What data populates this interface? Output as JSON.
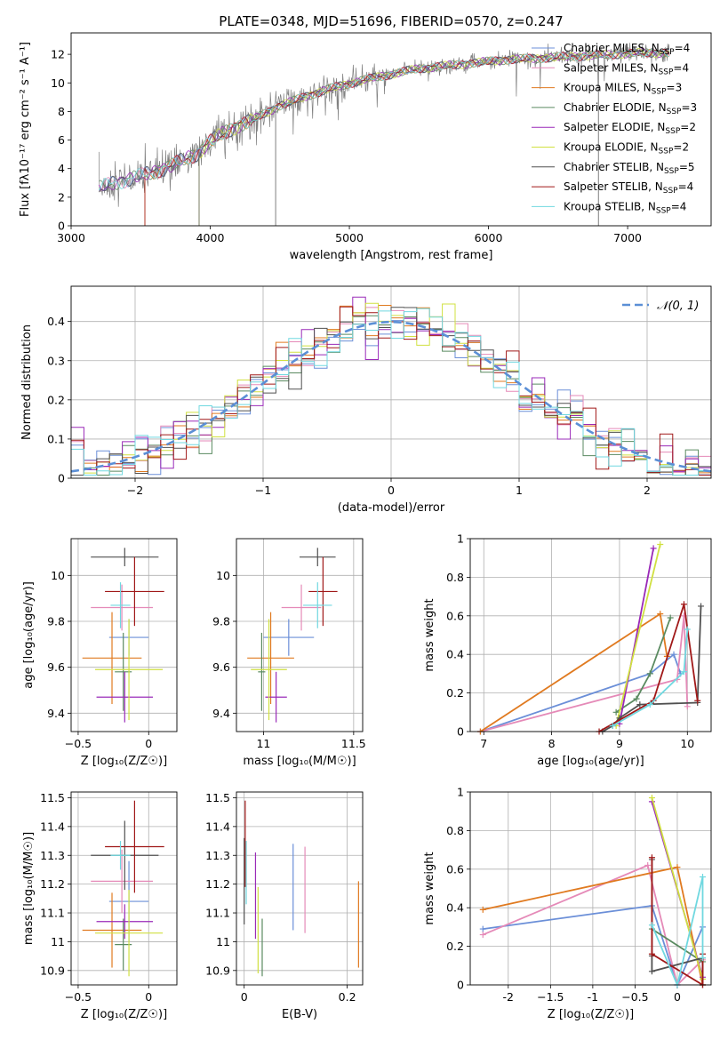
{
  "colors": {
    "chabrier_miles": "#6b8fd8",
    "salpeter_miles": "#e58ab8",
    "kroupa_miles": "#e07a20",
    "chabrier_elodie": "#5a8a60",
    "salpeter_elodie": "#9a2ab8",
    "kroupa_elodie": "#d0e040",
    "chabrier_stelib": "#505050",
    "salpeter_stelib": "#a01818",
    "kroupa_stelib": "#70d8e0",
    "gaussian": "#5b8fd6",
    "spectrum_data": "#808080"
  },
  "chart_data": [
    {
      "id": "spectrum",
      "type": "line",
      "title": "PLATE=0348, MJD=51696, FIBERID=0570, z=0.247",
      "xlabel": "wavelength [Angstrom, rest frame]",
      "ylabel": "Flux [fλ10⁻¹⁷ erg cm⁻² s⁻¹ A⁻¹]",
      "xlim": [
        3000,
        7600
      ],
      "ylim": [
        0,
        13.5
      ],
      "xticks": [
        3000,
        4000,
        5000,
        6000,
        7000
      ],
      "yticks": [
        0,
        2,
        4,
        6,
        8,
        10,
        12
      ],
      "legend_position": "right",
      "legend": [
        {
          "label": "Chabrier MILES, N_SSP=4",
          "color_key": "chabrier_miles"
        },
        {
          "label": "Salpeter MILES, N_SSP=4",
          "color_key": "salpeter_miles"
        },
        {
          "label": "Kroupa MILES, N_SSP=3",
          "color_key": "kroupa_miles"
        },
        {
          "label": "Chabrier ELODIE, N_SSP=3",
          "color_key": "chabrier_elodie"
        },
        {
          "label": "Salpeter ELODIE, N_SSP=2",
          "color_key": "salpeter_elodie"
        },
        {
          "label": "Kroupa ELODIE, N_SSP=2",
          "color_key": "kroupa_elodie"
        },
        {
          "label": "Chabrier STELIB, N_SSP=5",
          "color_key": "chabrier_stelib"
        },
        {
          "label": "Salpeter STELIB, N_SSP=4",
          "color_key": "salpeter_stelib"
        },
        {
          "label": "Kroupa STELIB, N_SSP=4",
          "color_key": "kroupa_stelib"
        }
      ],
      "continuum": {
        "x": [
          3200,
          3300,
          3400,
          3500,
          3600,
          3700,
          3800,
          3900,
          4000,
          4100,
          4200,
          4300,
          4400,
          4500,
          4700,
          4900,
          5100,
          5300,
          5500,
          5700,
          5900,
          6100,
          6300,
          6500,
          6700,
          6900,
          7100,
          7300
        ],
        "y": [
          2.6,
          3.0,
          3.2,
          3.5,
          3.8,
          4.1,
          4.6,
          5.0,
          5.9,
          6.5,
          7.0,
          7.4,
          7.9,
          8.4,
          9.1,
          9.7,
          10.2,
          10.6,
          11.0,
          11.2,
          11.4,
          11.6,
          11.7,
          11.8,
          11.9,
          12.0,
          12.1,
          12.1
        ]
      }
    },
    {
      "id": "residuals",
      "type": "bar",
      "xlabel": "(data-model)/error",
      "ylabel": "Normed distribution",
      "xlim": [
        -2.5,
        2.5
      ],
      "ylim": [
        0,
        0.49
      ],
      "xticks": [
        -2,
        -1,
        0,
        1,
        2
      ],
      "yticks": [
        0.0,
        0.1,
        0.2,
        0.3,
        0.4
      ],
      "grid": true,
      "legend_position": "top-right",
      "gaussian_label": "𝒩(0, 1)",
      "bin_width": 0.1,
      "bins_start": -2.5
    },
    {
      "id": "z_age",
      "type": "scatter",
      "xlabel": "Z [log₁₀(Z/Z☉)]",
      "ylabel": "age  [log₁₀(age/yr)]",
      "xlim": [
        -0.55,
        0.2
      ],
      "ylim": [
        9.32,
        10.16
      ],
      "xticks": [
        -0.5,
        0.0
      ],
      "yticks": [
        9.4,
        9.6,
        9.8,
        10.0
      ],
      "grid": true,
      "points": [
        {
          "series": "chabrier_miles",
          "x": -0.14,
          "xerr": 0.14,
          "y": 9.73,
          "yerr": 0.08
        },
        {
          "series": "salpeter_miles",
          "x": -0.19,
          "xerr": 0.22,
          "y": 9.86,
          "yerr": 0.1
        },
        {
          "series": "kroupa_miles",
          "x": -0.26,
          "xerr": 0.21,
          "y": 9.64,
          "yerr": 0.2
        },
        {
          "series": "chabrier_elodie",
          "x": -0.18,
          "xerr": 0.06,
          "y": 9.58,
          "yerr": 0.17
        },
        {
          "series": "salpeter_elodie",
          "x": -0.17,
          "xerr": 0.2,
          "y": 9.47,
          "yerr": 0.11
        },
        {
          "series": "kroupa_elodie",
          "x": -0.14,
          "xerr": 0.24,
          "y": 9.59,
          "yerr": 0.22
        },
        {
          "series": "chabrier_stelib",
          "x": -0.17,
          "xerr": 0.24,
          "y": 10.08,
          "yerr": 0.04
        },
        {
          "series": "salpeter_stelib",
          "x": -0.1,
          "xerr": 0.21,
          "y": 9.93,
          "yerr": 0.15
        },
        {
          "series": "kroupa_stelib",
          "x": -0.2,
          "xerr": 0.07,
          "y": 9.87,
          "yerr": 0.1
        }
      ]
    },
    {
      "id": "mass_age",
      "type": "scatter",
      "xlabel": "mass [log₁₀(M/M☉)]",
      "ylabel": "",
      "xlim": [
        10.85,
        11.55
      ],
      "ylim": [
        9.32,
        10.16
      ],
      "xticks": [
        11.0,
        11.5
      ],
      "yticks": [
        9.4,
        9.6,
        9.8,
        10.0
      ],
      "grid": true,
      "points": [
        {
          "series": "chabrier_miles",
          "x": 11.14,
          "xerr": 0.14,
          "y": 9.73,
          "yerr": 0.08
        },
        {
          "series": "salpeter_miles",
          "x": 11.21,
          "xerr": 0.11,
          "y": 9.86,
          "yerr": 0.1
        },
        {
          "series": "kroupa_miles",
          "x": 11.04,
          "xerr": 0.13,
          "y": 9.64,
          "yerr": 0.2
        },
        {
          "series": "chabrier_elodie",
          "x": 10.99,
          "xerr": 0.02,
          "y": 9.58,
          "yerr": 0.17
        },
        {
          "series": "salpeter_elodie",
          "x": 11.07,
          "xerr": 0.06,
          "y": 9.47,
          "yerr": 0.11
        },
        {
          "series": "kroupa_elodie",
          "x": 11.03,
          "xerr": 0.1,
          "y": 9.59,
          "yerr": 0.22
        },
        {
          "series": "chabrier_stelib",
          "x": 11.3,
          "xerr": 0.1,
          "y": 10.08,
          "yerr": 0.04
        },
        {
          "series": "salpeter_stelib",
          "x": 11.33,
          "xerr": 0.08,
          "y": 9.93,
          "yerr": 0.15
        },
        {
          "series": "kroupa_stelib",
          "x": 11.3,
          "xerr": 0.08,
          "y": 9.87,
          "yerr": 0.1
        }
      ]
    },
    {
      "id": "age_weight",
      "type": "line",
      "xlabel": "age  [log₁₀(age/yr)]",
      "ylabel": "mass weight",
      "xlim": [
        6.8,
        10.35
      ],
      "ylim": [
        0,
        1.0
      ],
      "xticks": [
        7,
        8,
        9,
        10
      ],
      "yticks": [
        0.0,
        0.2,
        0.4,
        0.6,
        0.8,
        1.0
      ],
      "grid": true,
      "series": [
        {
          "name": "chabrier_miles",
          "x": [
            6.95,
            9.45,
            9.8,
            9.9
          ],
          "y": [
            0.0,
            0.3,
            0.4,
            0.3
          ]
        },
        {
          "name": "salpeter_miles",
          "x": [
            6.95,
            9.85,
            9.95,
            10.0
          ],
          "y": [
            0.0,
            0.27,
            0.6,
            0.13
          ]
        },
        {
          "name": "kroupa_miles",
          "x": [
            6.95,
            9.6,
            9.7
          ],
          "y": [
            0.0,
            0.61,
            0.39
          ]
        },
        {
          "name": "chabrier_elodie",
          "x": [
            8.95,
            9.25,
            9.45,
            9.75
          ],
          "y": [
            0.1,
            0.17,
            0.3,
            0.59
          ]
        },
        {
          "name": "salpeter_elodie",
          "x": [
            9.0,
            9.5
          ],
          "y": [
            0.04,
            0.95
          ]
        },
        {
          "name": "kroupa_elodie",
          "x": [
            8.95,
            9.6
          ],
          "y": [
            0.03,
            0.97
          ]
        },
        {
          "name": "chabrier_stelib",
          "x": [
            8.75,
            8.9,
            9.0,
            9.3,
            10.15,
            10.2
          ],
          "y": [
            0.0,
            0.03,
            0.07,
            0.14,
            0.15,
            0.65
          ]
        },
        {
          "name": "salpeter_stelib",
          "x": [
            8.7,
            9.5,
            9.95,
            10.15
          ],
          "y": [
            0.0,
            0.16,
            0.66,
            0.16
          ]
        },
        {
          "name": "kroupa_stelib",
          "x": [
            8.9,
            9.45,
            9.95,
            10.0
          ],
          "y": [
            0.03,
            0.14,
            0.31,
            0.53
          ]
        }
      ]
    },
    {
      "id": "z_mass",
      "type": "scatter",
      "xlabel": "Z [log₁₀(Z/Z☉)]",
      "ylabel": "mass [log₁₀(M/M☉)]",
      "xlim": [
        -0.55,
        0.2
      ],
      "ylim": [
        10.85,
        11.52
      ],
      "xticks": [
        -0.5,
        0.0
      ],
      "yticks": [
        10.9,
        11.0,
        11.1,
        11.2,
        11.3,
        11.4,
        11.5
      ],
      "grid": true,
      "points": [
        {
          "series": "chabrier_miles",
          "x": -0.14,
          "xerr": 0.14,
          "y": 11.14,
          "yerr": 0.14
        },
        {
          "series": "salpeter_miles",
          "x": -0.19,
          "xerr": 0.22,
          "y": 11.21,
          "yerr": 0.11
        },
        {
          "series": "kroupa_miles",
          "x": -0.26,
          "xerr": 0.21,
          "y": 11.04,
          "yerr": 0.13
        },
        {
          "series": "chabrier_elodie",
          "x": -0.18,
          "xerr": 0.06,
          "y": 10.99,
          "yerr": 0.09
        },
        {
          "series": "salpeter_elodie",
          "x": -0.17,
          "xerr": 0.2,
          "y": 11.07,
          "yerr": 0.06
        },
        {
          "series": "kroupa_elodie",
          "x": -0.14,
          "xerr": 0.24,
          "y": 11.03,
          "yerr": 0.15
        },
        {
          "series": "chabrier_stelib",
          "x": -0.17,
          "xerr": 0.24,
          "y": 11.3,
          "yerr": 0.12
        },
        {
          "series": "salpeter_stelib",
          "x": -0.1,
          "xerr": 0.21,
          "y": 11.33,
          "yerr": 0.16
        },
        {
          "series": "kroupa_stelib",
          "x": -0.2,
          "xerr": 0.07,
          "y": 11.3,
          "yerr": 0.05
        }
      ]
    },
    {
      "id": "ebv_mass",
      "type": "scatter",
      "xlabel": "E(B-V)",
      "ylabel": "",
      "xlim": [
        -0.015,
        0.23
      ],
      "ylim": [
        10.85,
        11.52
      ],
      "xticks": [
        0.0,
        0.2
      ],
      "yticks": [
        10.9,
        11.0,
        11.1,
        11.2,
        11.3,
        11.4,
        11.5
      ],
      "grid": true,
      "points": [
        {
          "series": "chabrier_miles",
          "x": 0.095,
          "y": 11.19,
          "yerr": 0.15
        },
        {
          "series": "salpeter_miles",
          "x": 0.118,
          "y": 11.18,
          "yerr": 0.15
        },
        {
          "series": "kroupa_miles",
          "x": 0.222,
          "y": 11.06,
          "yerr": 0.15
        },
        {
          "series": "chabrier_elodie",
          "x": 0.035,
          "y": 10.98,
          "yerr": 0.1
        },
        {
          "series": "salpeter_elodie",
          "x": 0.022,
          "y": 11.16,
          "yerr": 0.15
        },
        {
          "series": "kroupa_elodie",
          "x": 0.027,
          "y": 11.04,
          "yerr": 0.15
        },
        {
          "series": "chabrier_stelib",
          "x": 0.0,
          "y": 11.21,
          "yerr": 0.15
        },
        {
          "series": "salpeter_stelib",
          "x": 0.002,
          "y": 11.34,
          "yerr": 0.15
        },
        {
          "series": "kroupa_stelib",
          "x": 0.004,
          "y": 11.24,
          "yerr": 0.11
        }
      ]
    },
    {
      "id": "z_weight",
      "type": "line",
      "xlabel": "Z [log₁₀(Z/Z☉)]",
      "ylabel": "mass weight",
      "xlim": [
        -2.45,
        0.4
      ],
      "ylim": [
        0,
        1.0
      ],
      "xticks": [
        -2.0,
        -1.5,
        -1.0,
        -0.5,
        0.0
      ],
      "yticks": [
        0.0,
        0.2,
        0.4,
        0.6,
        0.8,
        1.0
      ],
      "grid": true,
      "series": [
        {
          "name": "chabrier_miles",
          "x": [
            -2.3,
            -0.3,
            0.0,
            0.3
          ],
          "y": [
            0.29,
            0.41,
            0.0,
            0.3
          ]
        },
        {
          "name": "salpeter_miles",
          "x": [
            -2.3,
            -0.35,
            0.0,
            0.3
          ],
          "y": [
            0.26,
            0.62,
            0.0,
            0.13
          ]
        },
        {
          "name": "kroupa_miles",
          "x": [
            -2.3,
            -0.0,
            0.3
          ],
          "y": [
            0.39,
            0.61,
            0.0
          ]
        },
        {
          "name": "chabrier_elodie",
          "x": [
            -0.3,
            0.3
          ],
          "y": [
            0.29,
            0.12
          ]
        },
        {
          "name": "salpeter_elodie",
          "x": [
            -0.3,
            0.3
          ],
          "y": [
            0.95,
            0.04
          ]
        },
        {
          "name": "kroupa_elodie",
          "x": [
            -0.3,
            0.3
          ],
          "y": [
            0.97,
            0.03
          ]
        },
        {
          "name": "chabrier_stelib",
          "x": [
            -0.3,
            -0.3,
            -0.3,
            0.3,
            0.3
          ],
          "y": [
            0.65,
            0.15,
            0.07,
            0.14,
            0.0
          ]
        },
        {
          "name": "salpeter_stelib",
          "x": [
            -0.3,
            -0.3,
            0.3,
            0.3
          ],
          "y": [
            0.66,
            0.16,
            0.0,
            0.16
          ]
        },
        {
          "name": "kroupa_stelib",
          "x": [
            -0.3,
            0.0,
            0.3,
            0.3
          ],
          "y": [
            0.31,
            0.0,
            0.56,
            0.14
          ]
        }
      ]
    }
  ]
}
